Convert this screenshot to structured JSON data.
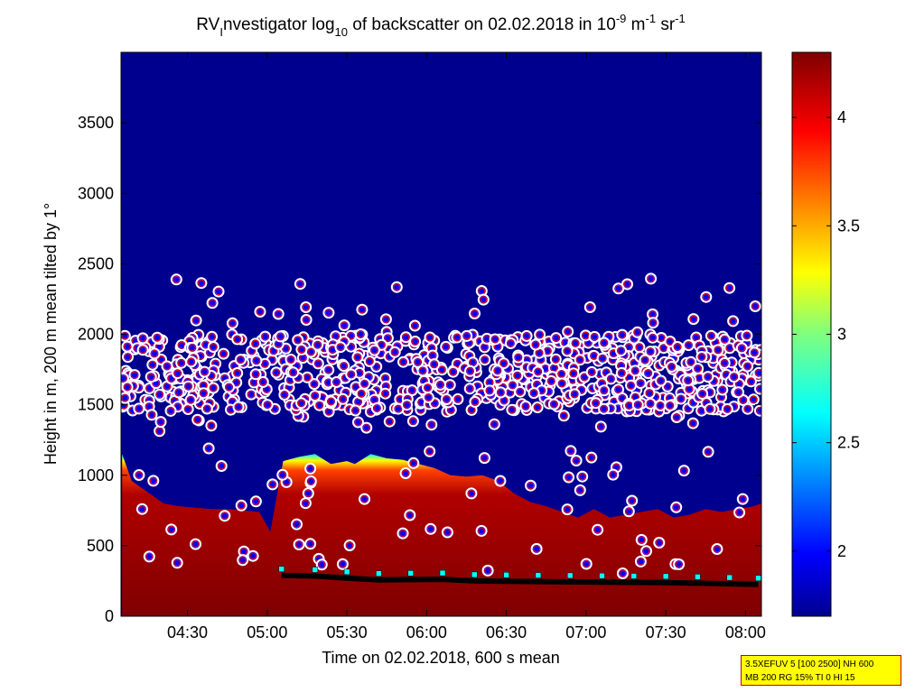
{
  "title": {
    "prefix": "RV",
    "sub1": "I",
    "part2": "nvestigator log",
    "sub2": "10",
    "part3": " of backscatter on 02.02.2018 in 10",
    "sup1": "-9",
    "part4": " m",
    "sup2": "-1",
    "part5": " sr",
    "sup3": "-1"
  },
  "info_box": {
    "line1": "3.5XEFUV 5 [100 2500] NH 600",
    "line2": "MB 200 RG 15% TI 0 HI 15"
  },
  "colors": {
    "background_low": "#00008f",
    "layer_high": "#7f0000",
    "marker_fill": "#0000ff",
    "marker_ring": "#ff0000",
    "marker_outline": "#ffffff",
    "cloud_base_line": "#000000",
    "cloud_base_marker": "#00ffff"
  },
  "chart_data": {
    "type": "heatmap",
    "xlabel": "Time on 02.02.2018, 600 s mean",
    "ylabel": "Height in m, 200 m mean tilted by 1°",
    "x_tick_labels": [
      "04:30",
      "05:00",
      "05:30",
      "06:00",
      "06:30",
      "07:00",
      "07:30",
      "08:00"
    ],
    "x_ticks_hours": [
      4.5,
      5.0,
      5.5,
      6.0,
      6.5,
      7.0,
      7.5,
      8.0
    ],
    "xlim_hours": [
      4.0833,
      8.1
    ],
    "y_tick_labels": [
      "0",
      "500",
      "1000",
      "1500",
      "2000",
      "2500",
      "3000",
      "3500"
    ],
    "y_ticks": [
      0,
      500,
      1000,
      1500,
      2000,
      2500,
      3000,
      3500
    ],
    "ylim": [
      0,
      4000
    ],
    "colorbar": {
      "tick_labels": [
        "2",
        "2.5",
        "3",
        "3.5",
        "4"
      ],
      "ticks": [
        2,
        2.5,
        3,
        3.5,
        4
      ],
      "range": [
        1.7,
        4.3
      ],
      "colormap": "jet"
    },
    "layer_top_profile": {
      "time_hours": [
        4.09,
        4.15,
        4.25,
        4.35,
        4.45,
        4.55,
        4.65,
        4.75,
        4.85,
        4.95,
        5.02,
        5.1,
        5.2,
        5.3,
        5.4,
        5.5,
        5.55,
        5.65,
        5.75,
        5.85,
        5.95,
        6.05,
        6.15,
        6.25,
        6.35,
        6.45,
        6.55,
        6.65,
        6.75,
        6.85,
        6.95,
        7.05,
        7.15,
        7.25,
        7.35,
        7.45,
        7.55,
        7.65,
        7.75,
        7.85,
        7.95,
        8.05,
        8.1
      ],
      "height_m": [
        1150,
        960,
        880,
        800,
        780,
        770,
        760,
        760,
        750,
        740,
        600,
        1100,
        1130,
        1150,
        1080,
        1100,
        1080,
        1150,
        1120,
        1110,
        1080,
        1050,
        1000,
        990,
        1000,
        960,
        870,
        810,
        780,
        740,
        700,
        760,
        700,
        720,
        740,
        760,
        700,
        720,
        760,
        740,
        760,
        780,
        800
      ]
    },
    "cloud_base": {
      "time_hours": [
        5.09,
        5.3,
        5.5,
        5.7,
        5.9,
        6.1,
        6.3,
        6.5,
        6.7,
        6.9,
        7.1,
        7.3,
        7.5,
        7.7,
        7.9,
        8.08
      ],
      "height_m": [
        290,
        285,
        270,
        258,
        260,
        262,
        250,
        248,
        246,
        244,
        242,
        240,
        238,
        234,
        230,
        225
      ]
    },
    "scatter_band": {
      "time_range_hours": [
        4.09,
        8.1
      ],
      "height_range_m": [
        1300,
        2400
      ],
      "description_count": 900
    }
  }
}
